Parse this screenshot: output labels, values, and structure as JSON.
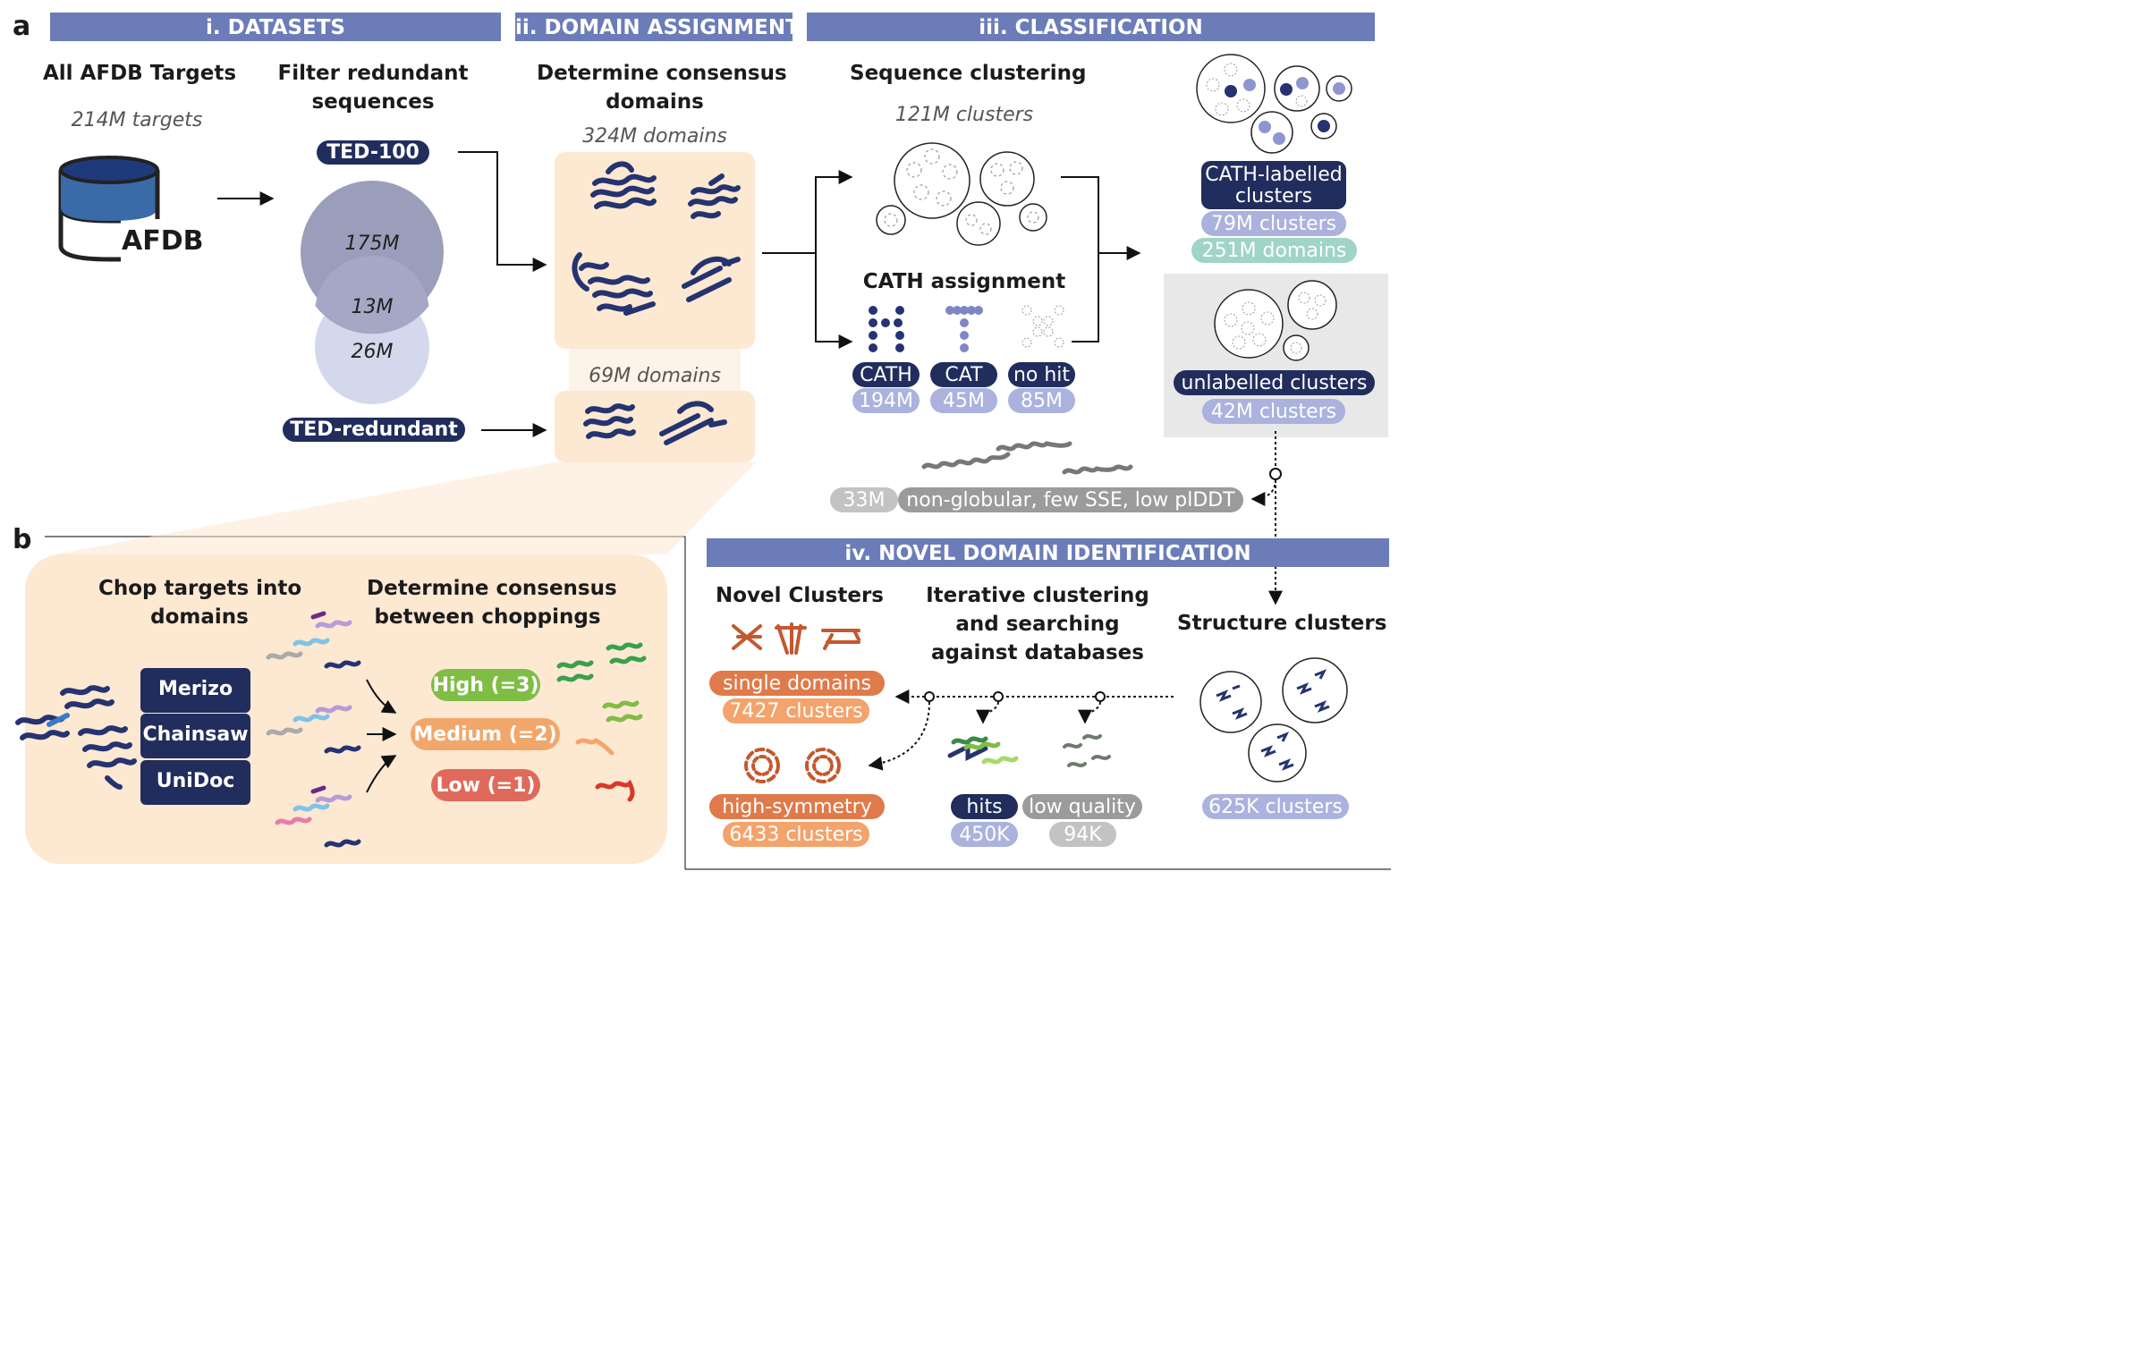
{
  "panels": {
    "a": "a",
    "b": "b"
  },
  "headers": {
    "datasets": "i. DATASETS",
    "domain_assignment": "ii. DOMAIN ASSIGNMENT",
    "classification": "iii. CLASSIFICATION",
    "novel": "iv. NOVEL DOMAIN IDENTIFICATION"
  },
  "datasets": {
    "all_targets_title": "All AFDB Targets",
    "targets_count": "214M targets",
    "afdb_label": "AFDB",
    "filter_title_1": "Filter redundant",
    "filter_title_2": "sequences",
    "ted100": "TED-100",
    "ted_redundant": "TED-redundant",
    "venn_top": "175M",
    "venn_overlap": "13M",
    "venn_bottom": "26M"
  },
  "domain_assignment": {
    "title_1": "Determine consensus",
    "title_2": "domains",
    "top_count": "324M domains",
    "bottom_count": "69M domains"
  },
  "classification": {
    "seq_title": "Sequence clustering",
    "seq_count": "121M clusters",
    "cath_title": "CATH assignment",
    "cath_pills": [
      {
        "label": "CATH",
        "count": "194M"
      },
      {
        "label": "CAT",
        "count": "45M"
      },
      {
        "label": "no hit",
        "count": "85M"
      }
    ],
    "labelled_1": "CATH-labelled",
    "labelled_2": "clusters",
    "labelled_clusters": "79M clusters",
    "labelled_domains": "251M domains",
    "unlabelled": "unlabelled clusters",
    "unlabelled_count": "42M clusters",
    "nonglob_count": "33M",
    "nonglob_label": "non-globular, few SSE, low plDDT"
  },
  "novel": {
    "novel_title": "Novel Clusters",
    "iter_1": "Iterative clustering",
    "iter_2": "and searching",
    "iter_3": "against databases",
    "struct_title": "Structure clusters",
    "single": "single domains",
    "single_count": "7427 clusters",
    "highsym": "high-symmetry",
    "highsym_count": "6433 clusters",
    "hits": "hits",
    "hits_count": "450K",
    "lowq": "low quality",
    "lowq_count": "94K",
    "struct_count": "625K clusters"
  },
  "panel_b": {
    "chop_1": "Chop targets into",
    "chop_2": "domains",
    "cons_1": "Determine consensus",
    "cons_2": "between choppings",
    "methods": [
      "Merizo",
      "Chainsaw",
      "UniDoc"
    ],
    "levels": [
      {
        "label": "High (=3)",
        "color": "#7fbd45"
      },
      {
        "label": "Medium (=2)",
        "color": "#f2a76a"
      },
      {
        "label": "Low (=1)",
        "color": "#df6a5c"
      }
    ]
  },
  "colors": {
    "header": "#6b7cb8",
    "navy": "#212d5c",
    "lavender": "#aab2dd",
    "mint": "#9fd4c7",
    "peach": "#fde8d2"
  }
}
